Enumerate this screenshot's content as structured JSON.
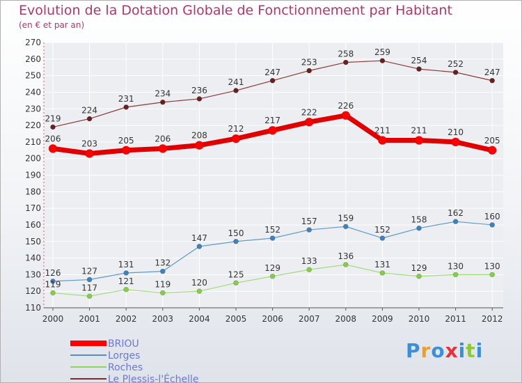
{
  "chart_data": {
    "type": "line",
    "title": "Evolution de la Dotation Globale de Fonctionnement par Habitant",
    "subtitle": "(en € et par an)",
    "x": [
      "2000",
      "2001",
      "2002",
      "2003",
      "2004",
      "2005",
      "2006",
      "2007",
      "2008",
      "2009",
      "2010",
      "2011",
      "2012"
    ],
    "ylim": [
      110,
      270
    ],
    "yticks": [
      110,
      120,
      130,
      140,
      150,
      160,
      170,
      180,
      190,
      200,
      210,
      220,
      230,
      240,
      250,
      260,
      270
    ],
    "grid": true,
    "legend_position": "bottom-left",
    "series": [
      {
        "name": "BRIOU",
        "color": "#ff0000",
        "values": [
          206,
          203,
          205,
          206,
          208,
          212,
          217,
          222,
          226,
          211,
          211,
          210,
          205
        ]
      },
      {
        "name": "Lorges",
        "color": "#4f8fc4",
        "values": [
          126,
          127,
          131,
          132,
          147,
          150,
          152,
          157,
          159,
          152,
          158,
          162,
          160
        ]
      },
      {
        "name": "Roches",
        "color": "#8fd460",
        "values": [
          119,
          117,
          121,
          119,
          120,
          125,
          129,
          133,
          136,
          131,
          129,
          130,
          130
        ]
      },
      {
        "name": "Le Plessis-l'Échelle",
        "color": "#7a2a2a",
        "values": [
          219,
          224,
          231,
          234,
          236,
          241,
          247,
          253,
          258,
          259,
          254,
          252,
          247
        ]
      }
    ]
  },
  "logo": {
    "text": "Proxiti",
    "colors": [
      "#3b8fd8",
      "#f0a020",
      "#3b8fd8",
      "#e8303a",
      "#3b8fd8",
      "#8fc83c",
      "#3b8fd8"
    ]
  }
}
